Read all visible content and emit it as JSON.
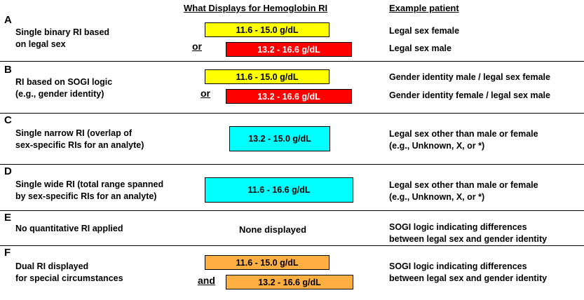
{
  "headers": {
    "display": "What Displays for Hemoglobin RI",
    "patient": "Example patient"
  },
  "rows": [
    {
      "letter": "A",
      "desc": [
        "Single binary RI based",
        "on legal sex"
      ],
      "conjunction": "or",
      "boxes": [
        "11.6 - 15.0 g/dL",
        "13.2 - 16.6 g/dL"
      ],
      "patients": [
        "Legal sex female",
        "Legal sex male"
      ]
    },
    {
      "letter": "B",
      "desc": [
        "RI based on SOGI logic",
        "(e.g., gender identity)"
      ],
      "conjunction": "or",
      "boxes": [
        "11.6 - 15.0 g/dL",
        "13.2 - 16.6 g/dL"
      ],
      "patients": [
        "Gender identity male / legal sex female",
        "Gender identity female / legal sex male"
      ]
    },
    {
      "letter": "C",
      "desc": [
        "Single narrow RI (overlap of",
        "sex-specific RIs for an analyte)"
      ],
      "boxes": [
        "13.2 - 15.0 g/dL"
      ],
      "patients": [
        "Legal sex other than male or female",
        "(e.g., Unknown, X, or *)"
      ]
    },
    {
      "letter": "D",
      "desc": [
        "Single wide RI (total range spanned",
        "by sex-specific RIs for an analyte)"
      ],
      "boxes": [
        "11.6 - 16.6 g/dL"
      ],
      "patients": [
        "Legal sex other than male or female",
        "(e.g., Unknown, X, or *)"
      ]
    },
    {
      "letter": "E",
      "desc": [
        "No quantitative RI applied"
      ],
      "none_text": "None displayed",
      "patients": [
        "SOGI logic indicating differences",
        "between legal sex and gender identity"
      ]
    },
    {
      "letter": "F",
      "desc": [
        "Dual RI displayed",
        "for special circumstances"
      ],
      "conjunction": "and",
      "boxes": [
        "11.6 - 15.0 g/dL",
        "13.2 - 16.6 g/dL"
      ],
      "patients": [
        "SOGI logic indicating differences",
        "between legal sex and gender identity"
      ]
    }
  ],
  "colors": {
    "female_range": "#ffff00",
    "male_range": "#ff0000",
    "single_range": "#00ffff",
    "dual_range": "#ffae42"
  }
}
